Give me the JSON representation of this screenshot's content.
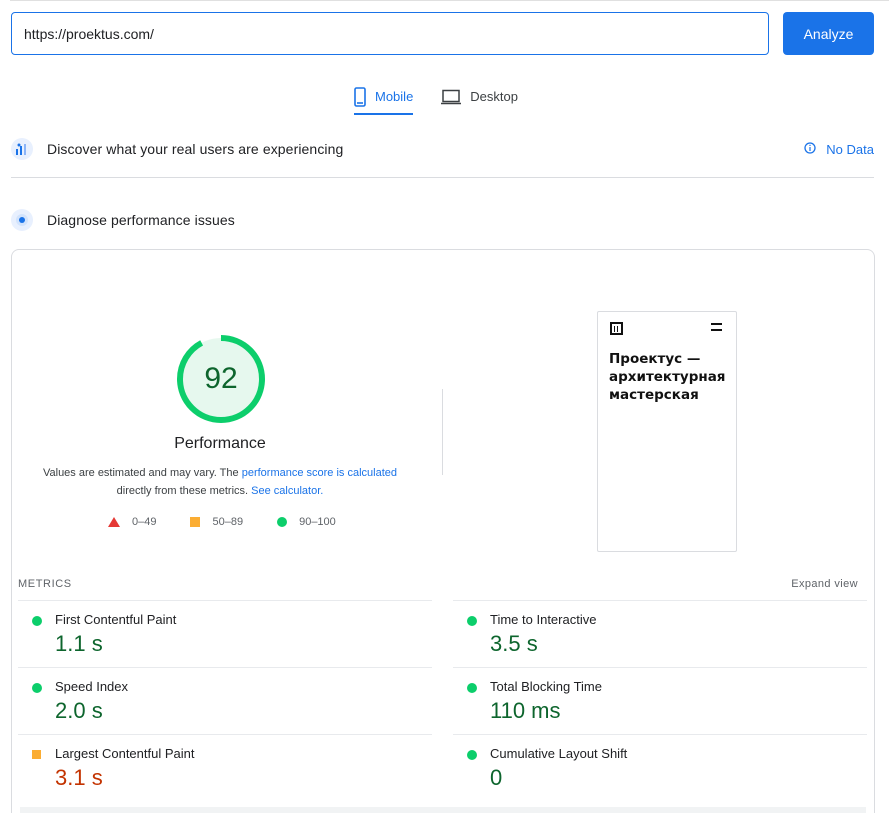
{
  "url_bar": {
    "value": "https://proektus.com/"
  },
  "analyze_label": "Analyze",
  "tabs": [
    {
      "label": "Mobile",
      "icon": "smartphone-icon",
      "active": true
    },
    {
      "label": "Desktop",
      "icon": "laptop-icon",
      "active": false
    }
  ],
  "field_data": {
    "title": "Discover what your real users are experiencing",
    "status": "No Data"
  },
  "lab_data": {
    "title": "Diagnose performance issues"
  },
  "performance": {
    "score": "92",
    "label": "Performance",
    "note_prefix": "Values are estimated and may vary. The",
    "note_link": "performance score is calculated",
    "note_middle": "directly from these metrics.",
    "note_link2": "See calculator."
  },
  "legend": [
    {
      "range": "0–49",
      "shape": "triangle",
      "color": "#e53935"
    },
    {
      "range": "50–89",
      "shape": "square",
      "color": "#fbad33"
    },
    {
      "range": "90–100",
      "shape": "circle",
      "color": "#0cce6b"
    }
  ],
  "screenshot": {
    "site_title": "Проектус — архитектурная мастерская"
  },
  "metrics": {
    "heading": "METRICS",
    "expand_label": "Expand view",
    "items": [
      {
        "name": "First Contentful Paint",
        "value": "1.1 s",
        "status": "good"
      },
      {
        "name": "Time to Interactive",
        "value": "3.5 s",
        "status": "good"
      },
      {
        "name": "Speed Index",
        "value": "2.0 s",
        "status": "good"
      },
      {
        "name": "Total Blocking Time",
        "value": "110 ms",
        "status": "good"
      },
      {
        "name": "Largest Contentful Paint",
        "value": "3.1 s",
        "status": "average"
      },
      {
        "name": "Cumulative Layout Shift",
        "value": "0",
        "status": "good"
      }
    ]
  },
  "colors": {
    "accent": "#1a73e8",
    "good": "#0cce6b",
    "good_text": "#0d652d",
    "average": "#fbad33",
    "average_text": "#c33300",
    "poor": "#e53935"
  }
}
